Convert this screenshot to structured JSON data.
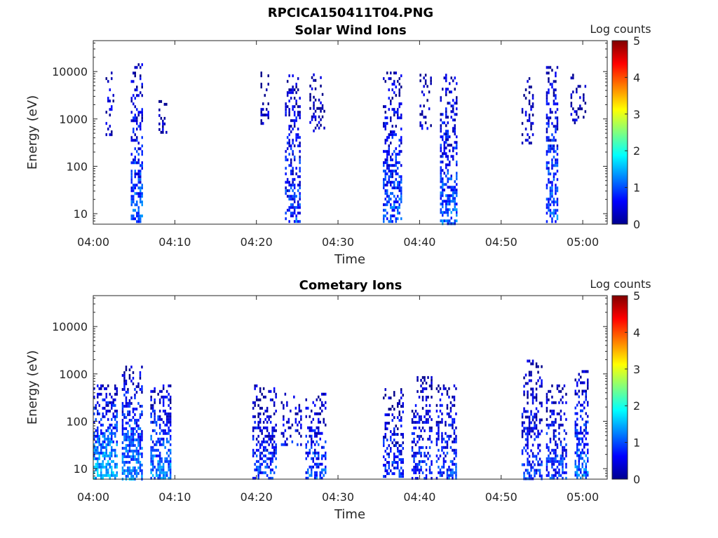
{
  "figure": {
    "title": "RPCICA150411T04.PNG"
  },
  "colorbar": {
    "label": "Log counts",
    "ticks": [
      "0",
      "1",
      "2",
      "3",
      "4",
      "5"
    ],
    "range": [
      0,
      5
    ],
    "colormap": "jet"
  },
  "chart_data": [
    {
      "type": "heatmap",
      "title": "Solar Wind Ions",
      "xlabel": "Time",
      "ylabel": "Energy (eV)",
      "xticks": [
        "04:00",
        "04:10",
        "04:20",
        "04:30",
        "04:40",
        "04:50",
        "05:00"
      ],
      "xlim_minutes": [
        0,
        63
      ],
      "yscale": "log",
      "yticks": [
        "10",
        "100",
        "1000",
        "10000"
      ],
      "ylim": [
        6,
        45000
      ],
      "bursts": [
        {
          "t": [
            4.6,
            6.0
          ],
          "e": [
            6,
            15000
          ],
          "level": 1.1
        },
        {
          "t": [
            1.5,
            2.5
          ],
          "e": [
            400,
            10000
          ],
          "level": 0.5
        },
        {
          "t": [
            8.0,
            9.0
          ],
          "e": [
            500,
            2500
          ],
          "level": 0.3
        },
        {
          "t": [
            20.5,
            21.5
          ],
          "e": [
            800,
            10000
          ],
          "level": 0.3
        },
        {
          "t": [
            23.5,
            25.5
          ],
          "e": [
            6,
            10000
          ],
          "level": 0.9
        },
        {
          "t": [
            26.5,
            28.5
          ],
          "e": [
            500,
            12000
          ],
          "level": 0.3
        },
        {
          "t": [
            35.5,
            37.8
          ],
          "e": [
            6,
            10000
          ],
          "level": 1.0
        },
        {
          "t": [
            40.0,
            41.5
          ],
          "e": [
            600,
            9000
          ],
          "level": 0.3
        },
        {
          "t": [
            42.5,
            44.6
          ],
          "e": [
            6,
            9000
          ],
          "level": 1.1
        },
        {
          "t": [
            52.5,
            54.0
          ],
          "e": [
            300,
            10000
          ],
          "level": 0.3
        },
        {
          "t": [
            55.5,
            57.0
          ],
          "e": [
            6,
            15000
          ],
          "level": 1.1
        },
        {
          "t": [
            58.5,
            60.5
          ],
          "e": [
            800,
            9000
          ],
          "level": 0.3
        }
      ]
    },
    {
      "type": "heatmap",
      "title": "Cometary Ions",
      "xlabel": "Time",
      "ylabel": "Energy (eV)",
      "xticks": [
        "04:00",
        "04:10",
        "04:20",
        "04:30",
        "04:40",
        "04:50",
        "05:00"
      ],
      "xlim_minutes": [
        0,
        63
      ],
      "yscale": "log",
      "yticks": [
        "10",
        "100",
        "1000",
        "10000"
      ],
      "ylim": [
        6,
        45000
      ],
      "bursts": [
        {
          "t": [
            0.0,
            3.0
          ],
          "e": [
            6,
            600
          ],
          "level": 1.6
        },
        {
          "t": [
            3.5,
            6.0
          ],
          "e": [
            6,
            1500
          ],
          "level": 1.3
        },
        {
          "t": [
            7.0,
            9.5
          ],
          "e": [
            6,
            600
          ],
          "level": 1.3
        },
        {
          "t": [
            19.5,
            22.5
          ],
          "e": [
            6,
            600
          ],
          "level": 0.9
        },
        {
          "t": [
            23.0,
            25.5
          ],
          "e": [
            30,
            400
          ],
          "level": 0.6
        },
        {
          "t": [
            26.0,
            28.5
          ],
          "e": [
            6,
            400
          ],
          "level": 1.0
        },
        {
          "t": [
            35.5,
            38.0
          ],
          "e": [
            6,
            500
          ],
          "level": 0.8
        },
        {
          "t": [
            39.0,
            41.5
          ],
          "e": [
            6,
            900
          ],
          "level": 0.8
        },
        {
          "t": [
            42.0,
            44.6
          ],
          "e": [
            6,
            600
          ],
          "level": 0.9
        },
        {
          "t": [
            52.5,
            55.0
          ],
          "e": [
            6,
            2000
          ],
          "level": 0.8
        },
        {
          "t": [
            55.5,
            58.0
          ],
          "e": [
            6,
            600
          ],
          "level": 0.9
        },
        {
          "t": [
            59.0,
            60.8
          ],
          "e": [
            6,
            1200
          ],
          "level": 1.2
        }
      ]
    }
  ]
}
